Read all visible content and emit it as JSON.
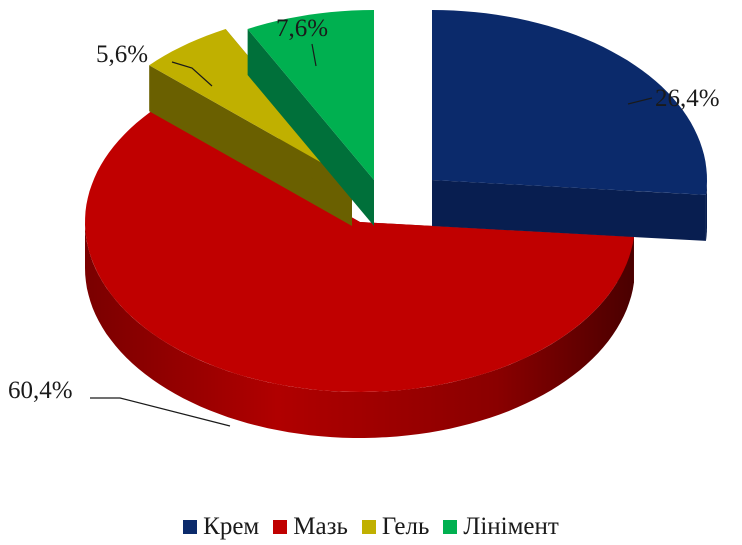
{
  "chart_data": {
    "type": "pie",
    "style": "3d-exploded",
    "categories": [
      "Крем",
      "Мазь",
      "Гель",
      "Лінімент"
    ],
    "values": [
      26.4,
      60.4,
      5.6,
      7.6
    ],
    "labels": [
      "26,4%",
      "60,4%",
      "5,6%",
      "7,6%"
    ],
    "colors": [
      "#0b2a6b",
      "#c00000",
      "#c0b000",
      "#00b050"
    ],
    "legend_position": "bottom",
    "title": ""
  },
  "legend": {
    "items": [
      {
        "label": "Крем",
        "color": "#0b2a6b"
      },
      {
        "label": "Мазь",
        "color": "#c00000"
      },
      {
        "label": "Гель",
        "color": "#c0b000"
      },
      {
        "label": "Лінімент",
        "color": "#00b050"
      }
    ]
  }
}
